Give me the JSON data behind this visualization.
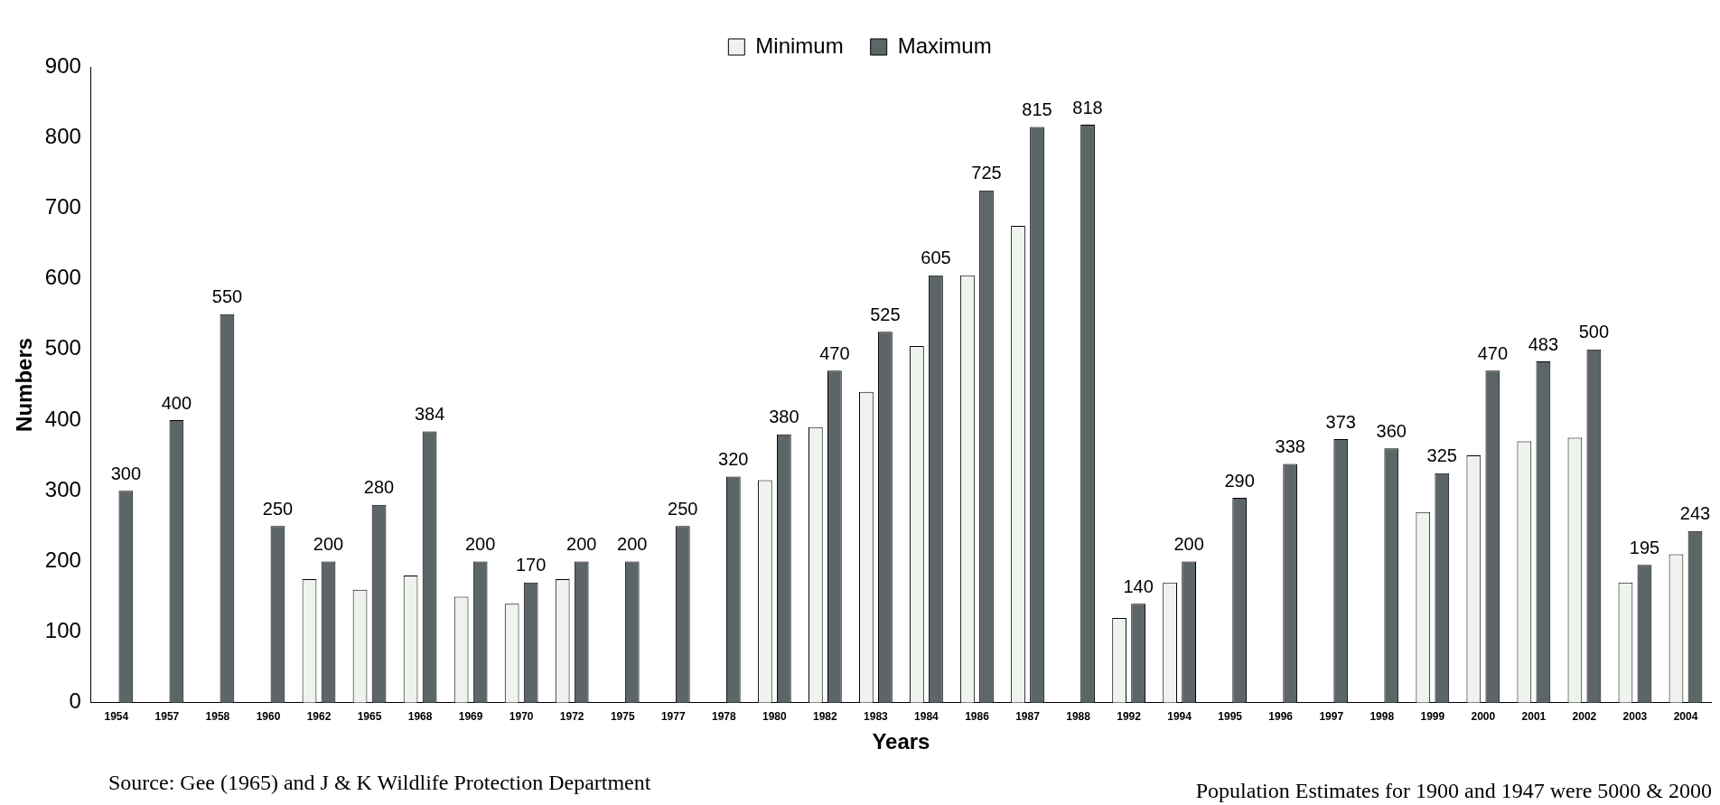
{
  "chart_data": {
    "type": "bar",
    "xlabel": "Years",
    "ylabel": "Numbers",
    "categories": [
      "1954",
      "1957",
      "1958",
      "1960",
      "1962",
      "1965",
      "1968",
      "1969",
      "1970",
      "1972",
      "1975",
      "1977",
      "1978",
      "1980",
      "1982",
      "1983",
      "1984",
      "1986",
      "1987",
      "1988",
      "1992",
      "1994",
      "1995",
      "1996",
      "1997",
      "1998",
      "1999",
      "2000",
      "2001",
      "2002",
      "2003",
      "2004"
    ],
    "series": [
      {
        "name": "Minimum",
        "color": "#eef3ee",
        "values": [
          null,
          null,
          null,
          null,
          175,
          160,
          180,
          150,
          140,
          175,
          null,
          null,
          null,
          315,
          390,
          440,
          505,
          605,
          675,
          null,
          120,
          170,
          null,
          null,
          null,
          null,
          270,
          350,
          370,
          375,
          170,
          210
        ]
      },
      {
        "name": "Maximum",
        "color": "#5c6669",
        "values": [
          300,
          400,
          550,
          250,
          200,
          280,
          384,
          200,
          170,
          200,
          200,
          250,
          320,
          380,
          470,
          525,
          605,
          725,
          815,
          818,
          140,
          200,
          290,
          338,
          373,
          360,
          325,
          470,
          483,
          500,
          195,
          243
        ],
        "value_labels": [
          "300",
          "400",
          "550",
          "250",
          "200",
          "280",
          "384",
          "200",
          "170",
          "200",
          "200",
          "250",
          "320",
          "380",
          "470",
          "525",
          "605",
          "725",
          "815",
          "818",
          "140",
          "200",
          "290",
          "338",
          "373",
          "360",
          "325",
          "470",
          "483",
          "500",
          "195",
          "243"
        ]
      }
    ],
    "ylim": [
      0,
      900
    ],
    "yticks": [
      0,
      100,
      200,
      300,
      400,
      500,
      600,
      700,
      800,
      900
    ],
    "grid": false,
    "legend": "top",
    "annotations": [
      "Source: Gee (1965) and J & K Wildlife Protection Department",
      "Population Estimates for 1900 and 1947 were 5000 & 2000"
    ]
  }
}
